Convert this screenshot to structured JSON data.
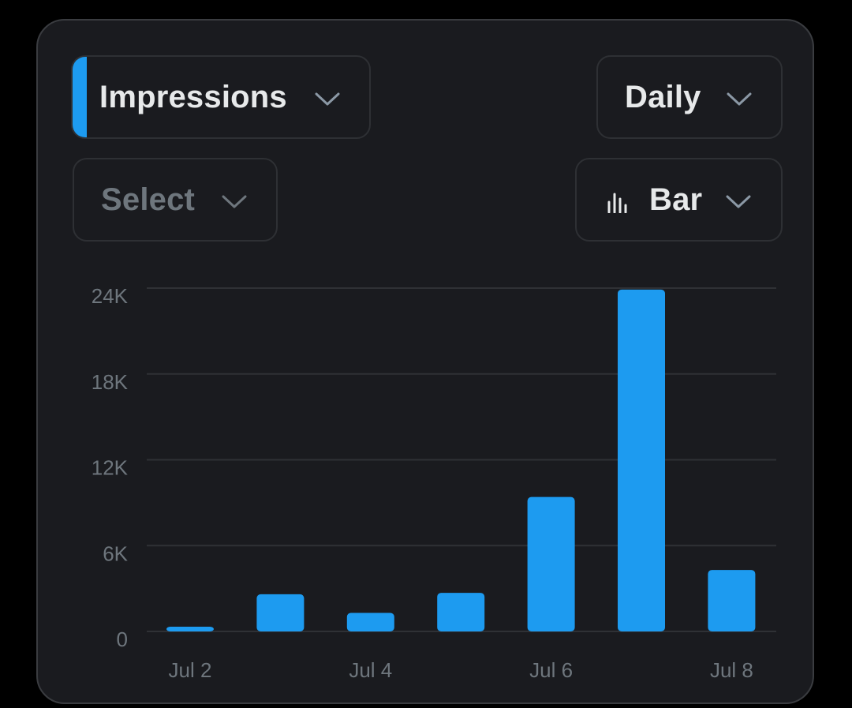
{
  "controls": {
    "metric_label": "Impressions",
    "period_label": "Daily",
    "compare_label": "Select",
    "chart_type_label": "Bar",
    "chart_type_icon": "bar-chart-icon",
    "dropdown_icon": "chevron-down-icon"
  },
  "colors": {
    "accent": "#1d9bf0",
    "background": "#1a1b1f",
    "gridline": "#2f3135",
    "text_muted": "#6e767d",
    "text": "#e7e9ea"
  },
  "chart_data": {
    "type": "bar",
    "x": [
      "Jul 2",
      "Jul 3",
      "Jul 4",
      "Jul 5",
      "Jul 6",
      "Jul 7",
      "Jul 8"
    ],
    "xtick_labels": [
      "Jul 2",
      "",
      "Jul 4",
      "",
      "Jul 6",
      "",
      "Jul 8"
    ],
    "series": [
      {
        "values": [
          300,
          2600,
          1300,
          2700,
          9400,
          23900,
          4300
        ]
      }
    ],
    "yticks": [
      0,
      6000,
      12000,
      18000,
      24000
    ],
    "ytick_labels": [
      "0",
      "6K",
      "12K",
      "18K",
      "24K"
    ],
    "ylim": [
      0,
      24000
    ],
    "grid": true,
    "legend": false,
    "title": "",
    "xlabel": "",
    "ylabel": ""
  }
}
